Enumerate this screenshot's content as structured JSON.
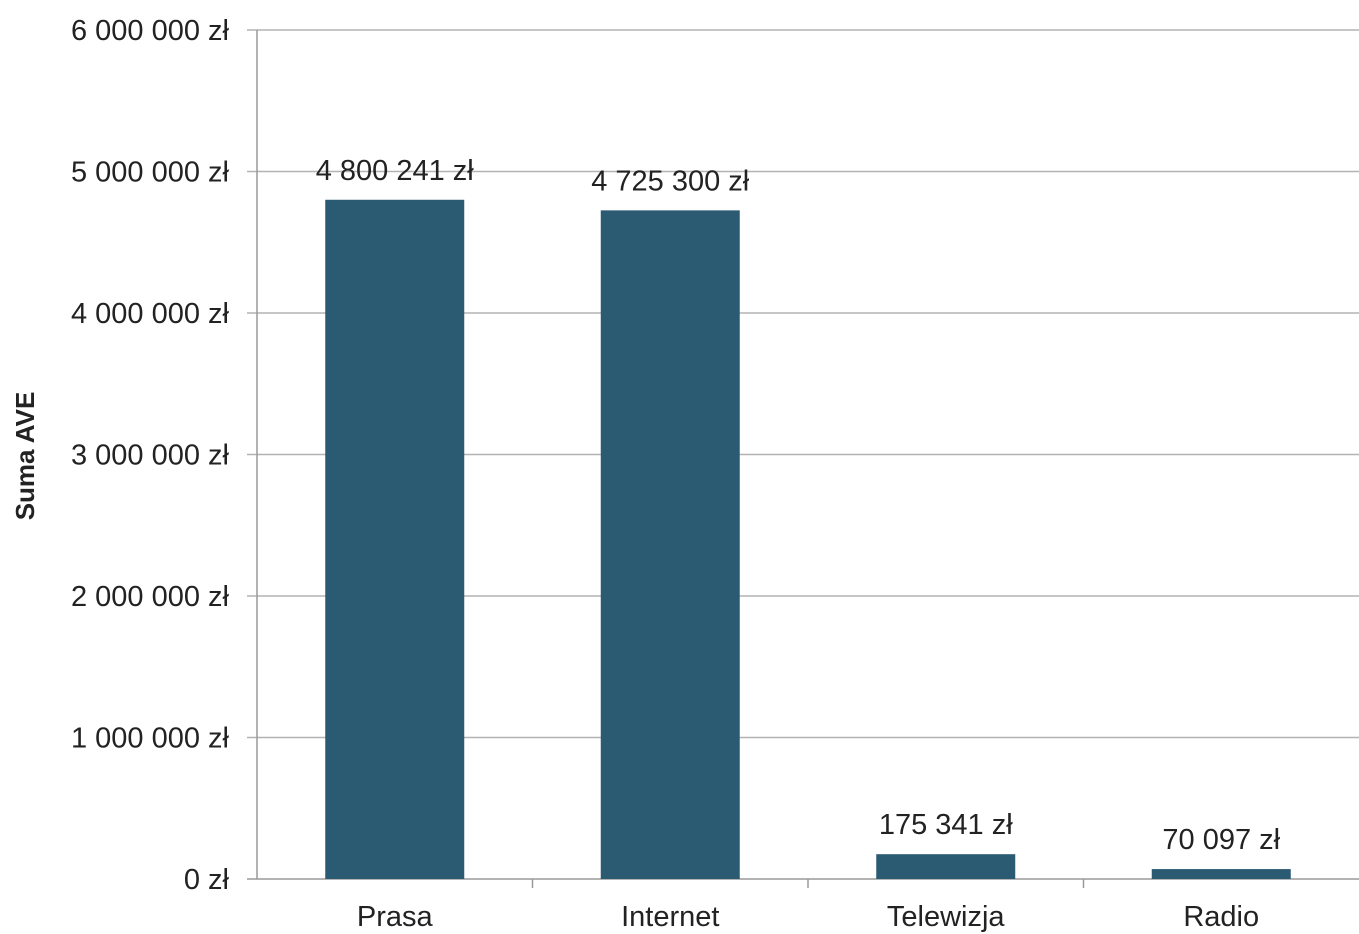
{
  "chart_data": {
    "type": "bar",
    "categories": [
      "Prasa",
      "Internet",
      "Telewizja",
      "Radio"
    ],
    "values": [
      4800241,
      4725300,
      175341,
      70097
    ],
    "data_labels": [
      "4 800 241 zł",
      "4 725 300 zł",
      "175 341 zł",
      "70 097 zł"
    ],
    "title": "",
    "xlabel": "",
    "ylabel": "Suma AVE",
    "ylim": [
      0,
      6000000
    ],
    "y_ticks": [
      0,
      1000000,
      2000000,
      3000000,
      4000000,
      5000000,
      6000000
    ],
    "y_tick_labels": [
      "0 zł",
      "1 000 000 zł",
      "2 000 000 zł",
      "3 000 000 zł",
      "4 000 000 zł",
      "5 000 000 zł",
      "6 000 000 zł"
    ],
    "grid": true,
    "legend": "none",
    "bar_color": "#2b5a73",
    "grid_color": "#b3b3b3",
    "axis_color": "#9a9a9a"
  }
}
